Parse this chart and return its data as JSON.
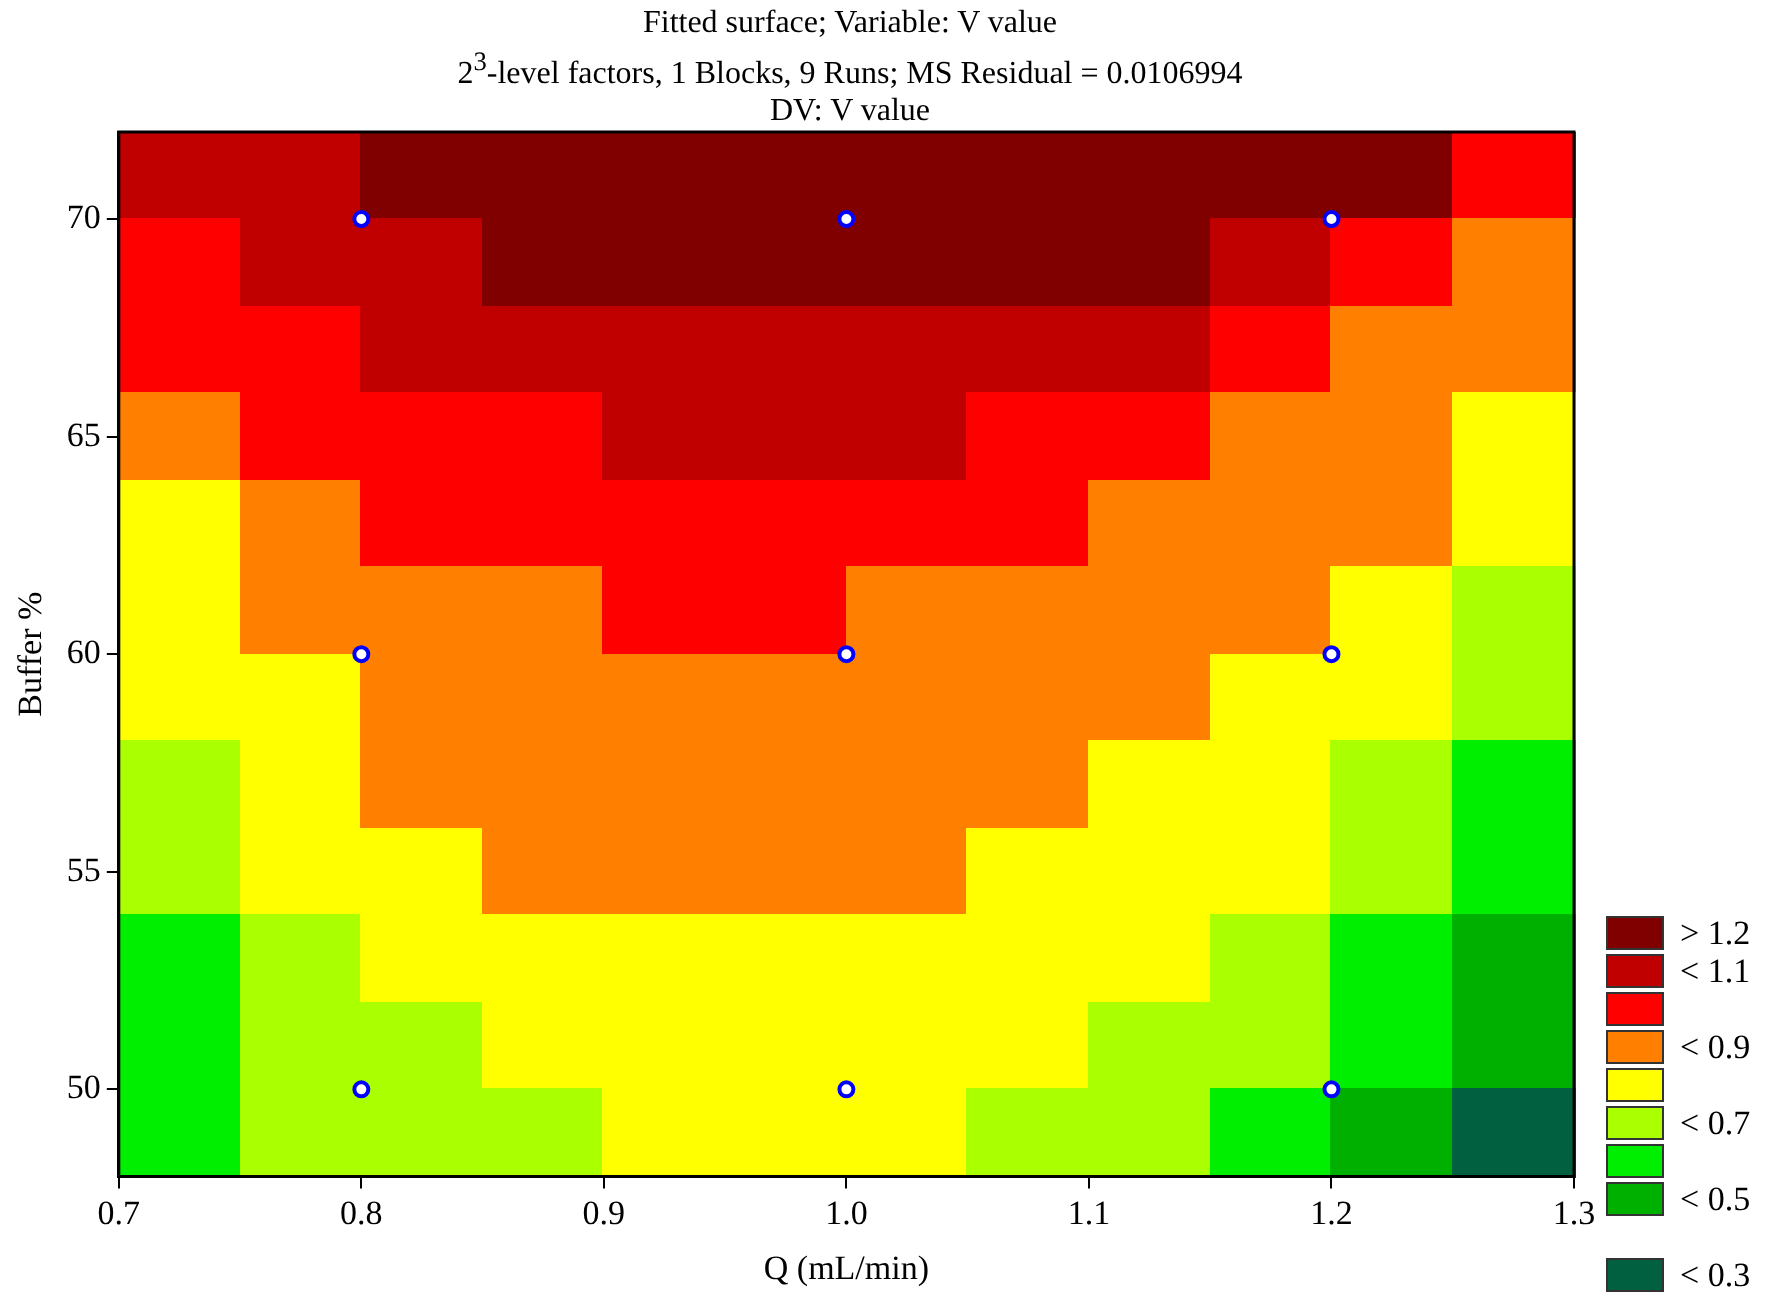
{
  "chart_data": {
    "type": "heatmap",
    "title": "Fitted surface; Variable: V value",
    "subtitle": "2$^{3}$-level factors, 1 Blocks, 9 Runs; MS Residual = 0.0106994\nDV: V value",
    "xlabel": "Q (mL/min)",
    "ylabel": "Buffer %",
    "x": [
      0.725,
      0.775,
      0.825,
      0.875,
      0.925,
      0.975,
      1.025,
      1.075,
      1.125,
      1.175,
      1.225,
      1.275
    ],
    "y": [
      71,
      69,
      67,
      65,
      63,
      61,
      59,
      57,
      55,
      53,
      51,
      49
    ],
    "xlim": [
      0.7,
      1.3
    ],
    "xticks": [
      0.7,
      0.8,
      0.9,
      {
        "value": 1,
        "label": "1.0"
      },
      1.1,
      1.2,
      1.3
    ],
    "ylim": [
      48,
      72
    ],
    "yticks": [
      50,
      55,
      60,
      65,
      70
    ],
    "cells": [
      [
        1.1,
        1.1,
        1.2,
        1.2,
        1.2,
        1.2,
        1.2,
        1.2,
        1.2,
        1.2,
        1.2,
        1.0
      ],
      [
        1.0,
        1.1,
        1.1,
        1.2,
        1.2,
        1.2,
        1.2,
        1.2,
        1.2,
        1.1,
        1.0,
        0.9
      ],
      [
        1.0,
        1.0,
        1.1,
        1.1,
        1.1,
        1.1,
        1.1,
        1.1,
        1.1,
        1.0,
        0.9,
        0.9
      ],
      [
        0.9,
        1.0,
        1.0,
        1.0,
        1.1,
        1.1,
        1.1,
        1.0,
        1.0,
        0.9,
        0.9,
        0.8
      ],
      [
        0.8,
        0.9,
        1.0,
        1.0,
        1.0,
        1.0,
        1.0,
        1.0,
        0.9,
        0.9,
        0.9,
        0.8
      ],
      [
        0.8,
        0.9,
        0.9,
        0.9,
        1.0,
        1.0,
        0.9,
        0.9,
        0.9,
        0.9,
        0.8,
        0.7
      ],
      [
        0.8,
        0.8,
        0.9,
        0.9,
        0.9,
        0.9,
        0.9,
        0.9,
        0.9,
        0.8,
        0.8,
        0.7
      ],
      [
        0.7,
        0.8,
        0.9,
        0.9,
        0.9,
        0.9,
        0.9,
        0.9,
        0.8,
        0.8,
        0.7,
        0.6
      ],
      [
        0.7,
        0.8,
        0.8,
        0.9,
        0.9,
        0.9,
        0.9,
        0.8,
        0.8,
        0.8,
        0.7,
        0.6
      ],
      [
        0.6,
        0.7,
        0.8,
        0.8,
        0.8,
        0.8,
        0.8,
        0.8,
        0.8,
        0.7,
        0.6,
        0.5
      ],
      [
        0.6,
        0.7,
        0.7,
        0.8,
        0.8,
        0.8,
        0.8,
        0.8,
        0.7,
        0.7,
        0.6,
        0.5
      ],
      [
        0.6,
        0.7,
        0.7,
        0.7,
        0.8,
        0.8,
        0.8,
        0.7,
        0.7,
        0.6,
        0.5,
        0.3
      ]
    ],
    "clim": [
      1.25,
      0.25
    ],
    "cticks": [
      {
        "value": 1.2,
        "label": "> 1.2"
      },
      {
        "value": 1.1,
        "label": "< 1.1"
      },
      {
        "value": 0.9,
        "label": "< 0.9"
      },
      {
        "value": 0.7,
        "label": "< 0.7"
      },
      {
        "value": 0.5,
        "label": "< 0.5"
      },
      {
        "value": 0.3,
        "label": "< 0.3"
      }
    ],
    "colors": [
      "#800000",
      "#c00000",
      "#ff0000",
      "#ff8000",
      "#ffff00",
      "#aaff00",
      "#00ee00",
      "#00b000",
      null,
      "#006040"
    ],
    "series": [
      {
        "type": "scatter",
        "color": "#0000ff",
        "x": [
          0.8,
          1.0,
          1.2,
          0.8,
          1.0,
          1.2,
          0.8,
          1.0,
          1.2
        ],
        "values": [
          70,
          70,
          70,
          60,
          60,
          60,
          50,
          50,
          50
        ]
      }
    ],
    "marker": "circle",
    "grid": false
  }
}
